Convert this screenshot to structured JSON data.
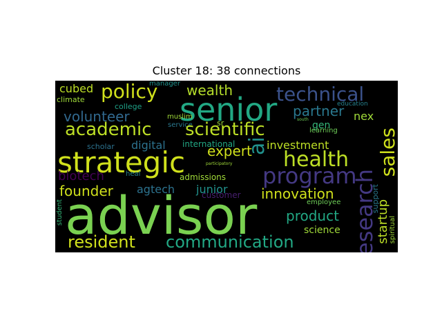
{
  "title": "Cluster 18: 38 connections",
  "words": {
    "advisor": "advisor",
    "senior": "senior",
    "strategic": "strategic",
    "technical": "technical",
    "policy": "policy",
    "academic": "academic",
    "scientific": "scientific",
    "research": "research",
    "sales": "sales",
    "program": "program",
    "health": "health",
    "communication": "communication",
    "resident": "resident",
    "founder": "founder",
    "innovation": "innovation",
    "product": "product",
    "volunteer": "volunteer",
    "wealth": "wealth",
    "partner": "partner",
    "expert": "expert",
    "ai": "ai",
    "biotech": "biotech",
    "startup": "startup",
    "investment": "investment",
    "digital": "digital",
    "agtech": "agtech",
    "junior": "junior",
    "science": "science",
    "cubed": "cubed",
    "nex": "nex",
    "gen": "gen",
    "climate": "climate",
    "college": "college",
    "manager": "manager",
    "muslim": "muslim",
    "service": "service",
    "sr": "sr",
    "scholar": "scholar",
    "international": "international",
    "admissions": "admissions",
    "heal": "heal",
    "customer": "customer",
    "education": "education",
    "learning": "learning",
    "employee": "employee",
    "support": "support",
    "spiritual": "spiritual",
    "student": "student",
    "south": "south",
    "participatory": "participatory"
  }
}
